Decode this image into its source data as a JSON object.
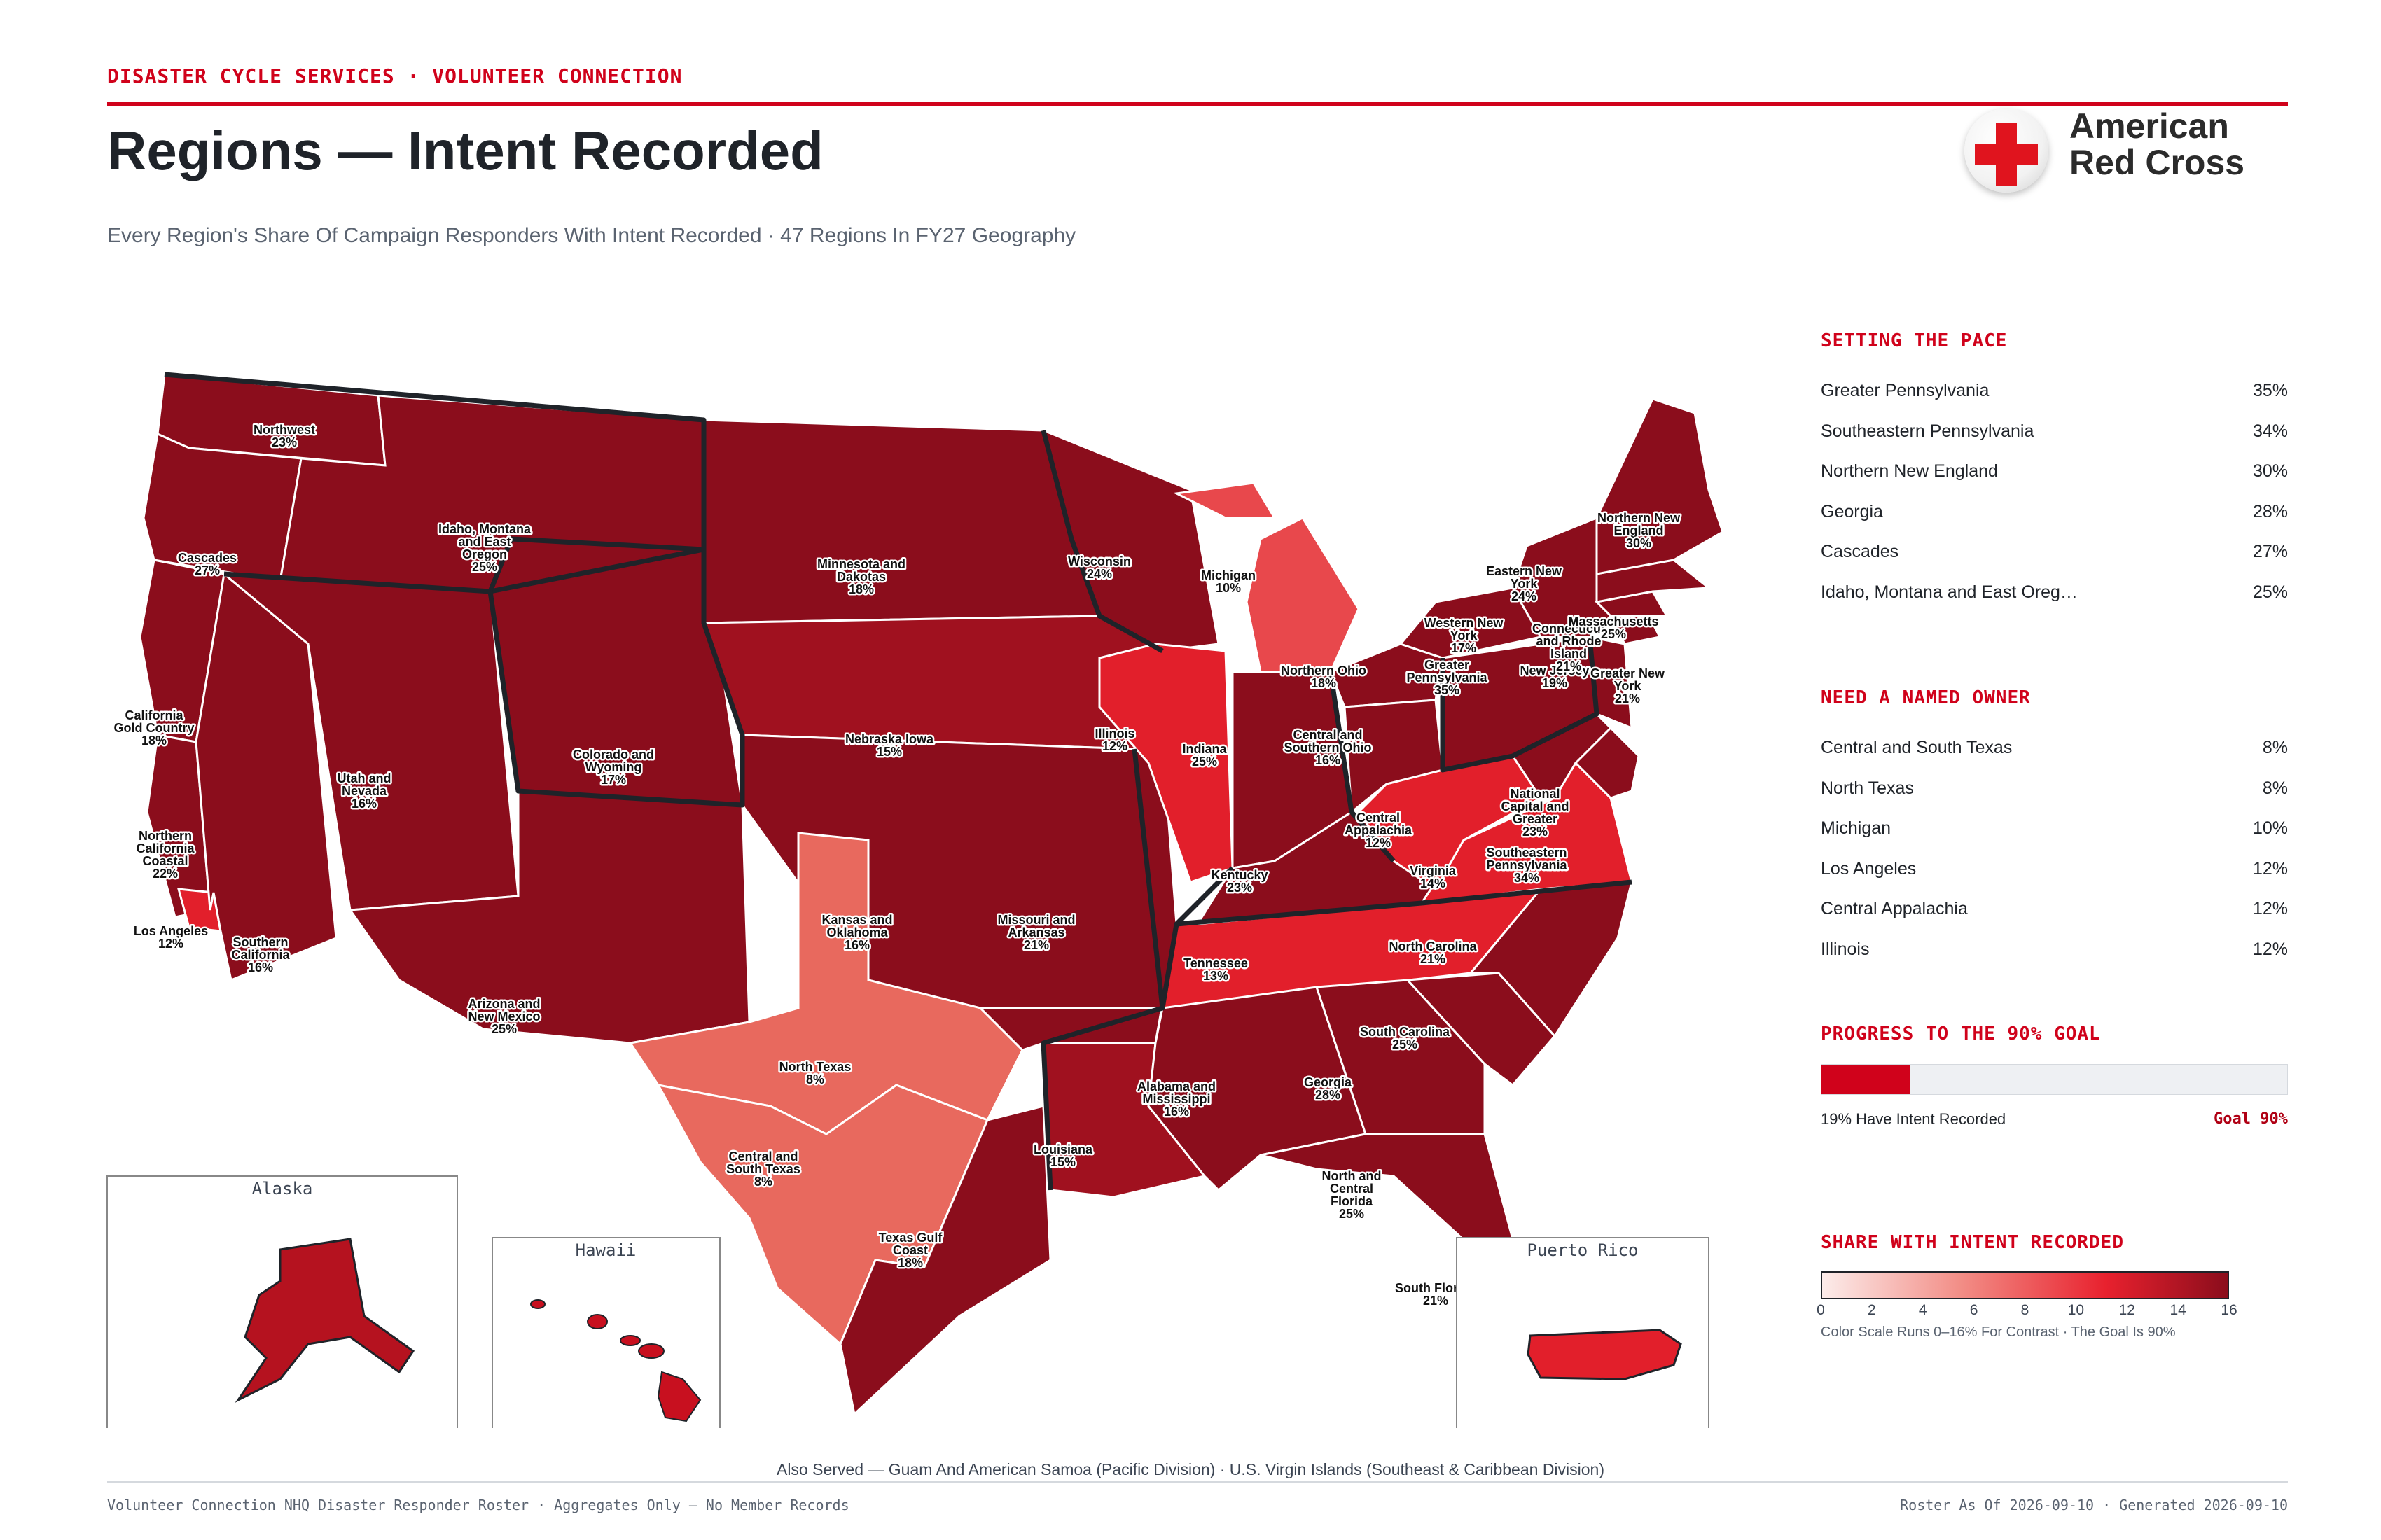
{
  "header": {
    "kicker": "DISASTER CYCLE SERVICES · VOLUNTEER CONNECTION",
    "title": "Regions — Intent Recorded",
    "subtitle": "Every Region's Share Of Campaign Responders With Intent Recorded · 47 Regions In FY27 Geography"
  },
  "logo": {
    "line1": "American",
    "line2": "Red Cross"
  },
  "colors": {
    "accent": "#d0021b",
    "darkest": "#8b0d1c",
    "dark": "#a0111f",
    "mid": "#e21f2b",
    "light": "#e8484c",
    "lightest": "#e8695e"
  },
  "map": {
    "regions": [
      {
        "name": "Northwest",
        "value": "23%"
      },
      {
        "name": "Cascades",
        "value": "27%"
      },
      {
        "name": "Idaho, Montana and East Oregon",
        "value": "25%"
      },
      {
        "name": "California Gold Country",
        "value": "18%"
      },
      {
        "name": "Northern California Coastal",
        "value": "22%"
      },
      {
        "name": "Los Angeles",
        "value": "12%"
      },
      {
        "name": "Southern California",
        "value": "16%"
      },
      {
        "name": "Utah and Nevada",
        "value": "16%"
      },
      {
        "name": "Colorado and Wyoming",
        "value": "17%"
      },
      {
        "name": "Arizona and New Mexico",
        "value": "25%"
      },
      {
        "name": "Minnesota and Dakotas",
        "value": "18%"
      },
      {
        "name": "Nebraska Iowa",
        "value": "15%"
      },
      {
        "name": "Kansas and Oklahoma",
        "value": "16%"
      },
      {
        "name": "North Texas",
        "value": "8%"
      },
      {
        "name": "Central and South Texas",
        "value": "8%"
      },
      {
        "name": "Texas Gulf Coast",
        "value": "18%"
      },
      {
        "name": "Missouri and Arkansas",
        "value": "21%"
      },
      {
        "name": "Louisiana",
        "value": "15%"
      },
      {
        "name": "Wisconsin",
        "value": "24%"
      },
      {
        "name": "Illinois",
        "value": "12%"
      },
      {
        "name": "Michigan",
        "value": "10%"
      },
      {
        "name": "Indiana",
        "value": "25%"
      },
      {
        "name": "Kentucky",
        "value": "23%"
      },
      {
        "name": "Tennessee",
        "value": "13%"
      },
      {
        "name": "Alabama and Mississippi",
        "value": "16%"
      },
      {
        "name": "Georgia",
        "value": "28%"
      },
      {
        "name": "North and Central Florida",
        "value": "25%"
      },
      {
        "name": "South Florida",
        "value": "21%"
      },
      {
        "name": "South Carolina",
        "value": "25%"
      },
      {
        "name": "North Carolina",
        "value": "21%"
      },
      {
        "name": "Virginia",
        "value": "14%"
      },
      {
        "name": "Central Appalachia",
        "value": "12%"
      },
      {
        "name": "Northern Ohio",
        "value": "18%"
      },
      {
        "name": "Central and Southern Ohio",
        "value": "16%"
      },
      {
        "name": "Greater Pennsylvania",
        "value": "35%"
      },
      {
        "name": "Southeastern Pennsylvania",
        "value": "34%"
      },
      {
        "name": "National Capital and Greater",
        "value": "23%"
      },
      {
        "name": "New Jersey",
        "value": "19%"
      },
      {
        "name": "Greater New York",
        "value": "21%"
      },
      {
        "name": "Western New York",
        "value": "17%"
      },
      {
        "name": "Eastern New York",
        "value": "24%"
      },
      {
        "name": "Connecticut and Rhode Island",
        "value": "21%"
      },
      {
        "name": "Massachusetts",
        "value": "25%"
      },
      {
        "name": "Northern New England",
        "value": "30%"
      }
    ],
    "insets": {
      "alaska": "Alaska",
      "hawaii": "Hawaii",
      "puerto_rico": "Puerto Rico"
    }
  },
  "setting_the_pace": {
    "heading": "SETTING THE PACE",
    "items": [
      {
        "name": "Greater Pennsylvania",
        "value": "35%"
      },
      {
        "name": "Southeastern Pennsylvania",
        "value": "34%"
      },
      {
        "name": "Northern New England",
        "value": "30%"
      },
      {
        "name": "Georgia",
        "value": "28%"
      },
      {
        "name": "Cascades",
        "value": "27%"
      },
      {
        "name": "Idaho, Montana and East Oreg…",
        "value": "25%"
      }
    ]
  },
  "need_owner": {
    "heading": "NEED A NAMED OWNER",
    "items": [
      {
        "name": "Central and South Texas",
        "value": "8%"
      },
      {
        "name": "North Texas",
        "value": "8%"
      },
      {
        "name": "Michigan",
        "value": "10%"
      },
      {
        "name": "Los Angeles",
        "value": "12%"
      },
      {
        "name": "Central Appalachia",
        "value": "12%"
      },
      {
        "name": "Illinois",
        "value": "12%"
      }
    ]
  },
  "progress": {
    "heading": "PROGRESS TO THE 90% GOAL",
    "current": 19,
    "goal_value": 90,
    "label": "19% Have Intent Recorded",
    "goal_label": "Goal 90%"
  },
  "legend": {
    "heading": "SHARE WITH INTENT RECORDED",
    "ticks": [
      "0",
      "2",
      "4",
      "6",
      "8",
      "10",
      "12",
      "14",
      "16"
    ],
    "range": [
      0,
      16
    ],
    "note": "Color Scale Runs 0–16% For Contrast · The Goal Is 90%"
  },
  "footer": {
    "also_served": "Also Served — Guam And American Samoa (Pacific Division) · U.S. Virgin Islands (Southeast & Caribbean Division)",
    "left": "Volunteer Connection NHQ Disaster Responder Roster · Aggregates Only — No Member Records",
    "right": "Roster As Of 2026-09-10 · Generated 2026-09-10"
  }
}
